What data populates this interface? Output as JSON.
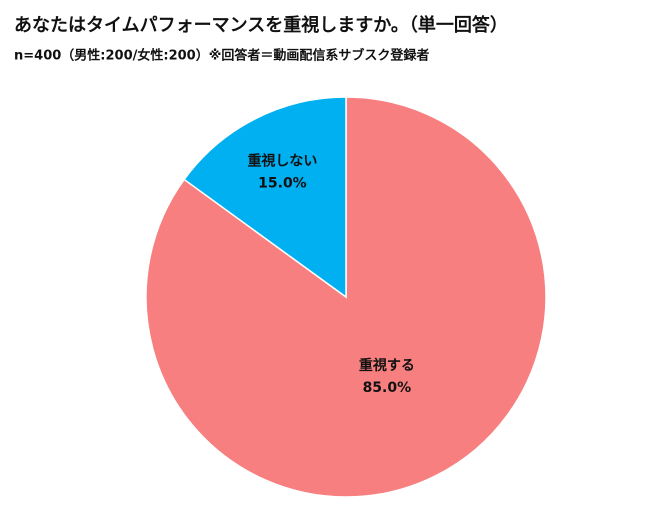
{
  "chart_data": {
    "type": "pie",
    "title": "あなたはタイムパフォーマンスを重視しますか。（単一回答）",
    "subtitle": "n=400（男性:200/女性:200）※回答者＝動画配信系サブスク登録者",
    "categories": [
      "重視する",
      "重視しない"
    ],
    "values": [
      85,
      15
    ],
    "value_labels": [
      "85.0%",
      "15.0%"
    ],
    "colors": [
      "#f87f7f",
      "#00b0f0"
    ]
  }
}
